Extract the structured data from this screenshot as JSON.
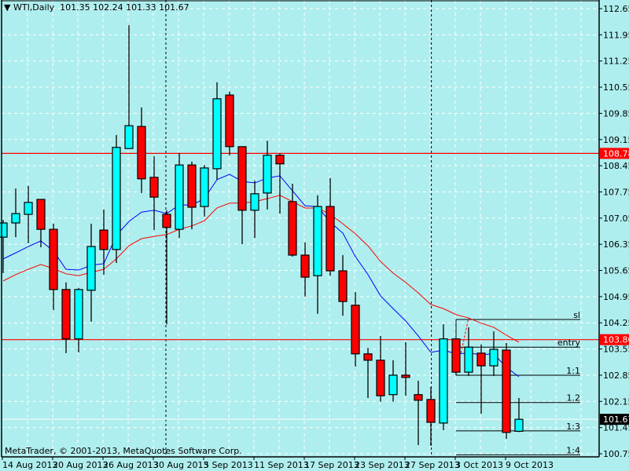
{
  "header": {
    "menu_icon": "triangle-down-icon",
    "symbol": "WTI,Daily",
    "ohlc": "101.35 102.24 101.33 101.67"
  },
  "footer": {
    "copyright": "MetaTrader, © 2001-2013, MetaQuotes Software Corp."
  },
  "colors": {
    "background": "#afeeee",
    "grid": "#ffffff",
    "bull": "#00ffff",
    "bear": "#ff0000",
    "ma_fast": "#0000ff",
    "ma_slow": "#ff0000",
    "hline": "#ff0000"
  },
  "chart_data": {
    "type": "candlestick",
    "title": "WTI,Daily",
    "ylim": [
      100.75,
      112.65
    ],
    "y_ticks": [
      "112.65",
      "111.95",
      "111.25",
      "110.55",
      "109.85",
      "109.15",
      "108.45",
      "107.75",
      "107.05",
      "106.35",
      "105.65",
      "104.95",
      "104.25",
      "103.55",
      "102.85",
      "102.15",
      "101.45",
      "100.75"
    ],
    "x_ticks": [
      {
        "index": 0,
        "label": "14 Aug 2013"
      },
      {
        "index": 4,
        "label": "20 Aug 2013"
      },
      {
        "index": 8,
        "label": "26 Aug 2013"
      },
      {
        "index": 12,
        "label": "30 Aug 2013"
      },
      {
        "index": 16,
        "label": "5 Sep 2013"
      },
      {
        "index": 20,
        "label": "11 Sep 2013"
      },
      {
        "index": 24,
        "label": "17 Sep 2013"
      },
      {
        "index": 28,
        "label": "23 Sep 2013"
      },
      {
        "index": 32,
        "label": "27 Sep 2013"
      },
      {
        "index": 36,
        "label": "3 Oct 2013"
      },
      {
        "index": 40,
        "label": "9 Oct 2013"
      }
    ],
    "candles_ohlc": [
      [
        106.54,
        107.0,
        105.58,
        106.92
      ],
      [
        106.92,
        107.84,
        106.54,
        107.17
      ],
      [
        107.15,
        107.91,
        106.38,
        107.47
      ],
      [
        107.55,
        107.55,
        106.27,
        106.75
      ],
      [
        106.75,
        106.9,
        104.59,
        105.14
      ],
      [
        105.14,
        105.33,
        103.44,
        103.82
      ],
      [
        103.82,
        105.18,
        103.46,
        105.14
      ],
      [
        105.12,
        106.9,
        104.28,
        106.29
      ],
      [
        106.73,
        107.28,
        105.54,
        106.21
      ],
      [
        106.21,
        109.27,
        105.85,
        108.94
      ],
      [
        108.91,
        112.21,
        108.91,
        109.52
      ],
      [
        109.5,
        110.01,
        107.72,
        108.1
      ],
      [
        108.14,
        108.7,
        106.73,
        107.61
      ],
      [
        107.15,
        107.26,
        104.21,
        106.8
      ],
      [
        106.75,
        108.79,
        106.52,
        108.47
      ],
      [
        108.47,
        108.56,
        106.75,
        107.34
      ],
      [
        107.36,
        108.47,
        107.09,
        108.39
      ],
      [
        108.37,
        110.68,
        108.08,
        110.24
      ],
      [
        110.34,
        110.43,
        108.73,
        108.96
      ],
      [
        108.96,
        108.96,
        106.35,
        107.26
      ],
      [
        107.26,
        108.05,
        106.52,
        107.7
      ],
      [
        107.72,
        109.12,
        107.28,
        108.73
      ],
      [
        108.73,
        108.78,
        107.17,
        108.5
      ],
      [
        107.49,
        107.97,
        106.02,
        106.06
      ],
      [
        106.06,
        106.4,
        104.95,
        105.47
      ],
      [
        105.51,
        107.66,
        104.49,
        107.36
      ],
      [
        107.36,
        108.12,
        105.51,
        105.64
      ],
      [
        105.64,
        106.06,
        104.44,
        104.82
      ],
      [
        104.72,
        105.07,
        103.08,
        103.42
      ],
      [
        103.42,
        103.58,
        102.24,
        103.25
      ],
      [
        103.25,
        103.9,
        102.14,
        102.3
      ],
      [
        102.33,
        103.25,
        102.14,
        102.85
      ],
      [
        102.85,
        103.73,
        102.3,
        102.79
      ],
      [
        102.33,
        102.7,
        100.98,
        102.18
      ],
      [
        102.2,
        102.53,
        100.96,
        101.59
      ],
      [
        101.57,
        104.21,
        101.38,
        103.82
      ],
      [
        103.82,
        103.82,
        102.85,
        102.93
      ],
      [
        102.93,
        104.13,
        102.83,
        103.6
      ],
      [
        103.44,
        103.67,
        101.82,
        103.1
      ],
      [
        103.1,
        104.02,
        102.83,
        103.54
      ],
      [
        103.52,
        103.71,
        101.15,
        101.32
      ],
      [
        101.35,
        102.24,
        101.33,
        101.67
      ]
    ],
    "series": [
      {
        "name": "MA fast",
        "values": [
          105.96,
          106.12,
          106.29,
          106.44,
          106.17,
          105.68,
          105.66,
          105.79,
          105.83,
          106.59,
          106.96,
          107.21,
          107.26,
          107.17,
          107.4,
          107.4,
          107.57,
          108.08,
          108.22,
          108.03,
          107.99,
          108.12,
          108.18,
          107.78,
          107.38,
          107.36,
          106.94,
          106.65,
          106.02,
          105.54,
          104.97,
          104.63,
          104.3,
          103.9,
          103.46,
          103.52,
          103.42,
          103.44,
          103.4,
          103.42,
          103.06,
          102.81
        ]
      },
      {
        "name": "MA slow",
        "values": [
          105.37,
          105.54,
          105.68,
          105.81,
          105.7,
          105.56,
          105.51,
          105.6,
          105.68,
          105.96,
          106.31,
          106.5,
          106.56,
          106.61,
          106.75,
          106.84,
          106.98,
          107.32,
          107.45,
          107.45,
          107.49,
          107.57,
          107.66,
          107.49,
          107.32,
          107.32,
          107.15,
          106.9,
          106.63,
          106.31,
          105.89,
          105.58,
          105.33,
          105.05,
          104.74,
          104.63,
          104.47,
          104.38,
          104.24,
          104.13,
          103.92,
          103.73
        ]
      }
    ],
    "horizontal_lines": [
      {
        "price": 108.78,
        "label": "108.78"
      },
      {
        "price": 103.8,
        "label": "103.80"
      }
    ],
    "bid_line": {
      "price": 101.67,
      "label": "101.67"
    },
    "period_separators": [
      13,
      34.1
    ],
    "levels": [
      {
        "name": "sl",
        "price": 104.34
      },
      {
        "name": "entry",
        "price": 103.6
      },
      {
        "name": "1:1",
        "price": 102.85
      },
      {
        "name": "1.2",
        "price": 102.12
      },
      {
        "name": "1:3",
        "price": 101.36
      },
      {
        "name": "1:4",
        "price": 100.72
      }
    ],
    "levels_start_index": 36,
    "trend_dashed": [
      [
        36.4,
        103.44
      ],
      [
        37,
        104.39
      ]
    ]
  }
}
